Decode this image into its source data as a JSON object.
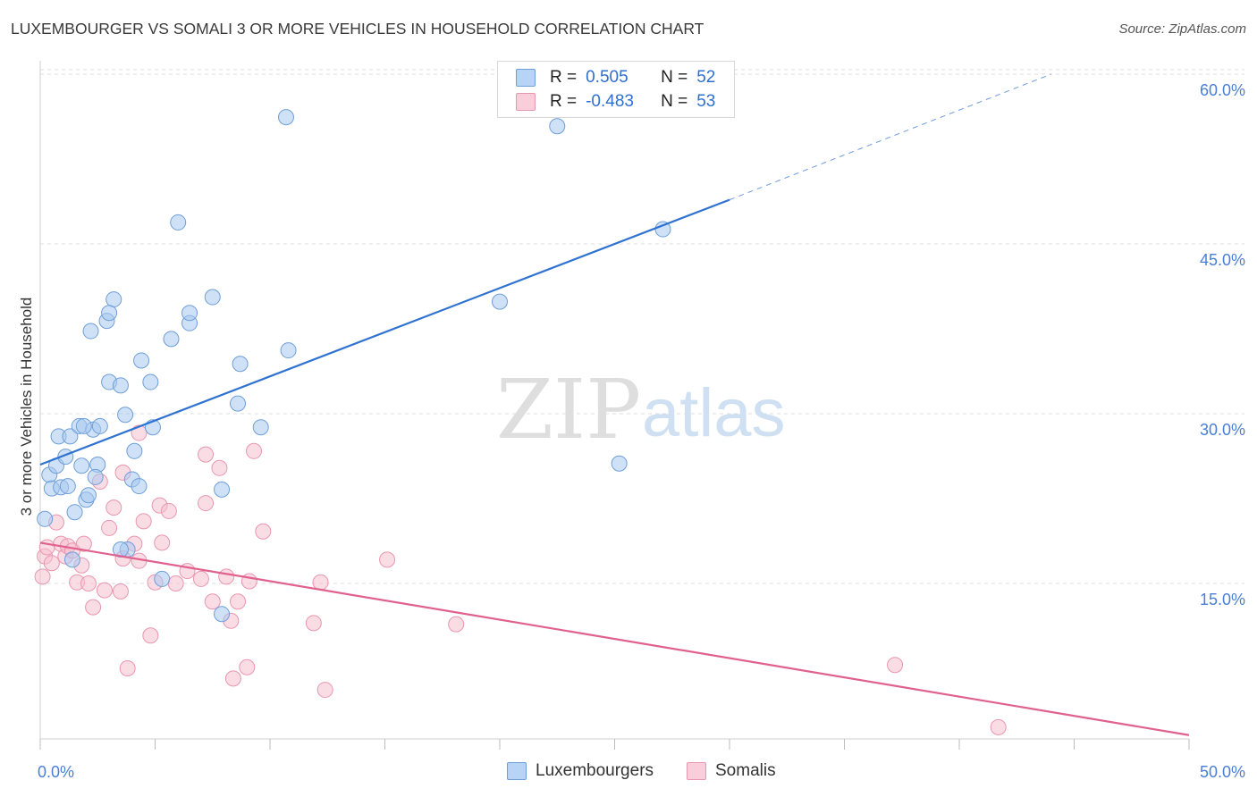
{
  "title": "LUXEMBOURGER VS SOMALI 3 OR MORE VEHICLES IN HOUSEHOLD CORRELATION CHART",
  "source": "Source: ZipAtlas.com",
  "watermark": {
    "zip": "ZIP",
    "atlas": "atlas"
  },
  "legend": {
    "rows": [
      {
        "r_label": "R =",
        "r_value": "0.505",
        "n_label": "N =",
        "n_value": "52"
      },
      {
        "r_label": "R =",
        "r_value": "-0.483",
        "n_label": "N =",
        "n_value": "53"
      }
    ]
  },
  "bottom_legend": {
    "series1": "Luxembourgers",
    "series2": "Somalis"
  },
  "colors": {
    "blue_fill": "#a8c8f0",
    "blue_stroke": "#6f9fd8",
    "blue_line": "#2f72d0",
    "pink_fill": "#f6bfd0",
    "pink_stroke": "#e897b0",
    "pink_line": "#e0608e",
    "tick": "#4a7fd6",
    "grid": "#dcdcdc"
  },
  "chart_data": {
    "type": "scatter",
    "title": "LUXEMBOURGER VS SOMALI 3 OR MORE VEHICLES IN HOUSEHOLD CORRELATION CHART",
    "xlabel": "",
    "ylabel": "3 or more Vehicles in Household",
    "xlim": [
      0,
      50
    ],
    "ylim": [
      0,
      62
    ],
    "x_tick_labels": [
      "0.0%",
      "50.0%"
    ],
    "y_ticks": [
      15,
      30,
      45,
      60
    ],
    "y_tick_labels": [
      "15.0%",
      "30.0%",
      "45.0%",
      "60.0%"
    ],
    "grid": true,
    "legend_placement": "top-center",
    "series": [
      {
        "name": "Luxembourgers",
        "r": 0.505,
        "n": 52,
        "trend": {
          "x0": 0,
          "y0": 25.5,
          "x1": 30,
          "y1": 48.9,
          "dashed_to_x": 44,
          "dashed_to_y": 60
        },
        "points": [
          [
            0.2,
            20.7
          ],
          [
            0.4,
            24.6
          ],
          [
            0.5,
            23.4
          ],
          [
            0.7,
            25.4
          ],
          [
            0.8,
            28.0
          ],
          [
            0.9,
            23.5
          ],
          [
            1.1,
            26.2
          ],
          [
            1.2,
            23.6
          ],
          [
            1.3,
            28.0
          ],
          [
            1.4,
            17.1
          ],
          [
            1.5,
            21.3
          ],
          [
            1.7,
            28.9
          ],
          [
            1.8,
            25.4
          ],
          [
            2.0,
            22.4
          ],
          [
            2.1,
            22.8
          ],
          [
            2.3,
            28.6
          ],
          [
            2.5,
            25.5
          ],
          [
            2.6,
            28.9
          ],
          [
            2.2,
            37.3
          ],
          [
            3.0,
            32.8
          ],
          [
            3.2,
            40.1
          ],
          [
            3.5,
            32.5
          ],
          [
            3.7,
            29.9
          ],
          [
            3.8,
            18.0
          ],
          [
            4.0,
            24.2
          ],
          [
            4.1,
            26.7
          ],
          [
            4.3,
            23.6
          ],
          [
            4.4,
            34.7
          ],
          [
            4.9,
            28.8
          ],
          [
            4.8,
            32.8
          ],
          [
            5.3,
            15.4
          ],
          [
            5.7,
            36.6
          ],
          [
            6.0,
            46.9
          ],
          [
            6.5,
            38.0
          ],
          [
            6.5,
            38.9
          ],
          [
            7.5,
            40.3
          ],
          [
            7.9,
            23.3
          ],
          [
            7.9,
            12.3
          ],
          [
            8.6,
            30.9
          ],
          [
            8.7,
            34.4
          ],
          [
            9.6,
            28.8
          ],
          [
            10.7,
            56.2
          ],
          [
            10.8,
            35.6
          ],
          [
            2.9,
            38.2
          ],
          [
            3.0,
            38.9
          ],
          [
            2.4,
            24.4
          ],
          [
            20.0,
            39.9
          ],
          [
            22.5,
            55.4
          ],
          [
            25.2,
            25.6
          ],
          [
            27.1,
            46.3
          ],
          [
            1.9,
            28.9
          ],
          [
            3.5,
            18.0
          ]
        ]
      },
      {
        "name": "Somalis",
        "r": -0.483,
        "n": 53,
        "trend": {
          "x0": 0,
          "y0": 18.6,
          "x1": 50,
          "y1": 1.6
        },
        "points": [
          [
            0.1,
            15.6
          ],
          [
            0.2,
            17.4
          ],
          [
            0.3,
            18.2
          ],
          [
            0.5,
            16.8
          ],
          [
            0.7,
            20.4
          ],
          [
            0.9,
            18.5
          ],
          [
            1.1,
            17.4
          ],
          [
            1.2,
            18.3
          ],
          [
            1.4,
            17.9
          ],
          [
            1.6,
            15.1
          ],
          [
            1.8,
            16.6
          ],
          [
            1.9,
            18.5
          ],
          [
            2.1,
            15.0
          ],
          [
            2.3,
            12.9
          ],
          [
            2.6,
            24.0
          ],
          [
            2.8,
            14.4
          ],
          [
            3.0,
            19.9
          ],
          [
            3.2,
            21.7
          ],
          [
            3.5,
            14.3
          ],
          [
            3.6,
            24.8
          ],
          [
            3.8,
            7.5
          ],
          [
            4.1,
            18.5
          ],
          [
            4.3,
            17.0
          ],
          [
            4.5,
            20.5
          ],
          [
            4.8,
            10.4
          ],
          [
            5.0,
            15.1
          ],
          [
            5.2,
            21.9
          ],
          [
            5.3,
            18.6
          ],
          [
            5.6,
            21.4
          ],
          [
            5.9,
            15.0
          ],
          [
            6.4,
            16.1
          ],
          [
            7.0,
            15.4
          ],
          [
            7.2,
            22.1
          ],
          [
            7.2,
            26.4
          ],
          [
            7.5,
            13.4
          ],
          [
            7.8,
            25.2
          ],
          [
            8.1,
            15.6
          ],
          [
            8.3,
            11.7
          ],
          [
            8.4,
            6.6
          ],
          [
            8.6,
            13.4
          ],
          [
            9.0,
            7.6
          ],
          [
            9.1,
            15.2
          ],
          [
            9.3,
            26.7
          ],
          [
            9.7,
            19.6
          ],
          [
            11.9,
            11.5
          ],
          [
            12.2,
            15.1
          ],
          [
            12.4,
            5.6
          ],
          [
            15.1,
            17.1
          ],
          [
            18.1,
            11.4
          ],
          [
            4.3,
            28.3
          ],
          [
            37.2,
            7.8
          ],
          [
            41.7,
            2.3
          ],
          [
            3.6,
            17.2
          ]
        ]
      }
    ]
  }
}
